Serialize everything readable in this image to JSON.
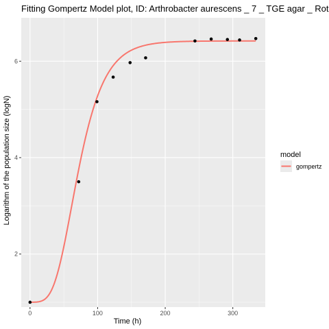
{
  "colors": {
    "panel_background": "#ebebeb",
    "grid_major": "#ffffff",
    "point": "#000000",
    "fit_line": "#f8766d",
    "tick_text": "#4d4d4d",
    "legend_key_background": "#ebebeb"
  },
  "chart_data": {
    "type": "scatter",
    "title": "Fitting Gompertz Model plot, ID: Arthrobacter aurescens _ 7 _ TGE agar _ Rot",
    "xlabel": "Time (h)",
    "ylabel": "Logarithm of the population size (logN)",
    "xlim": [
      -13,
      348
    ],
    "ylim": [
      0.9,
      6.9
    ],
    "x_ticks": [
      0,
      100,
      200,
      300
    ],
    "y_ticks": [
      2,
      4,
      6
    ],
    "x_tick_labels": [
      "0",
      "100",
      "200",
      "300"
    ],
    "y_tick_labels": [
      "2",
      "4",
      "6"
    ],
    "grid": true,
    "points": {
      "x": [
        0,
        72,
        99,
        123,
        148,
        171,
        244,
        268,
        292,
        310,
        334
      ],
      "y": [
        1.0,
        3.5,
        5.16,
        5.67,
        5.97,
        6.07,
        6.42,
        6.46,
        6.45,
        6.44,
        6.47
      ]
    },
    "fit": {
      "name": "gompertz",
      "model": "gompertz",
      "y0": 1.0,
      "ymax": 6.42,
      "mumax": 0.075,
      "lag": 35,
      "x_range": [
        0,
        334
      ]
    },
    "legend": {
      "title": "model",
      "placement": "right",
      "entries": [
        "gompertz"
      ]
    }
  }
}
